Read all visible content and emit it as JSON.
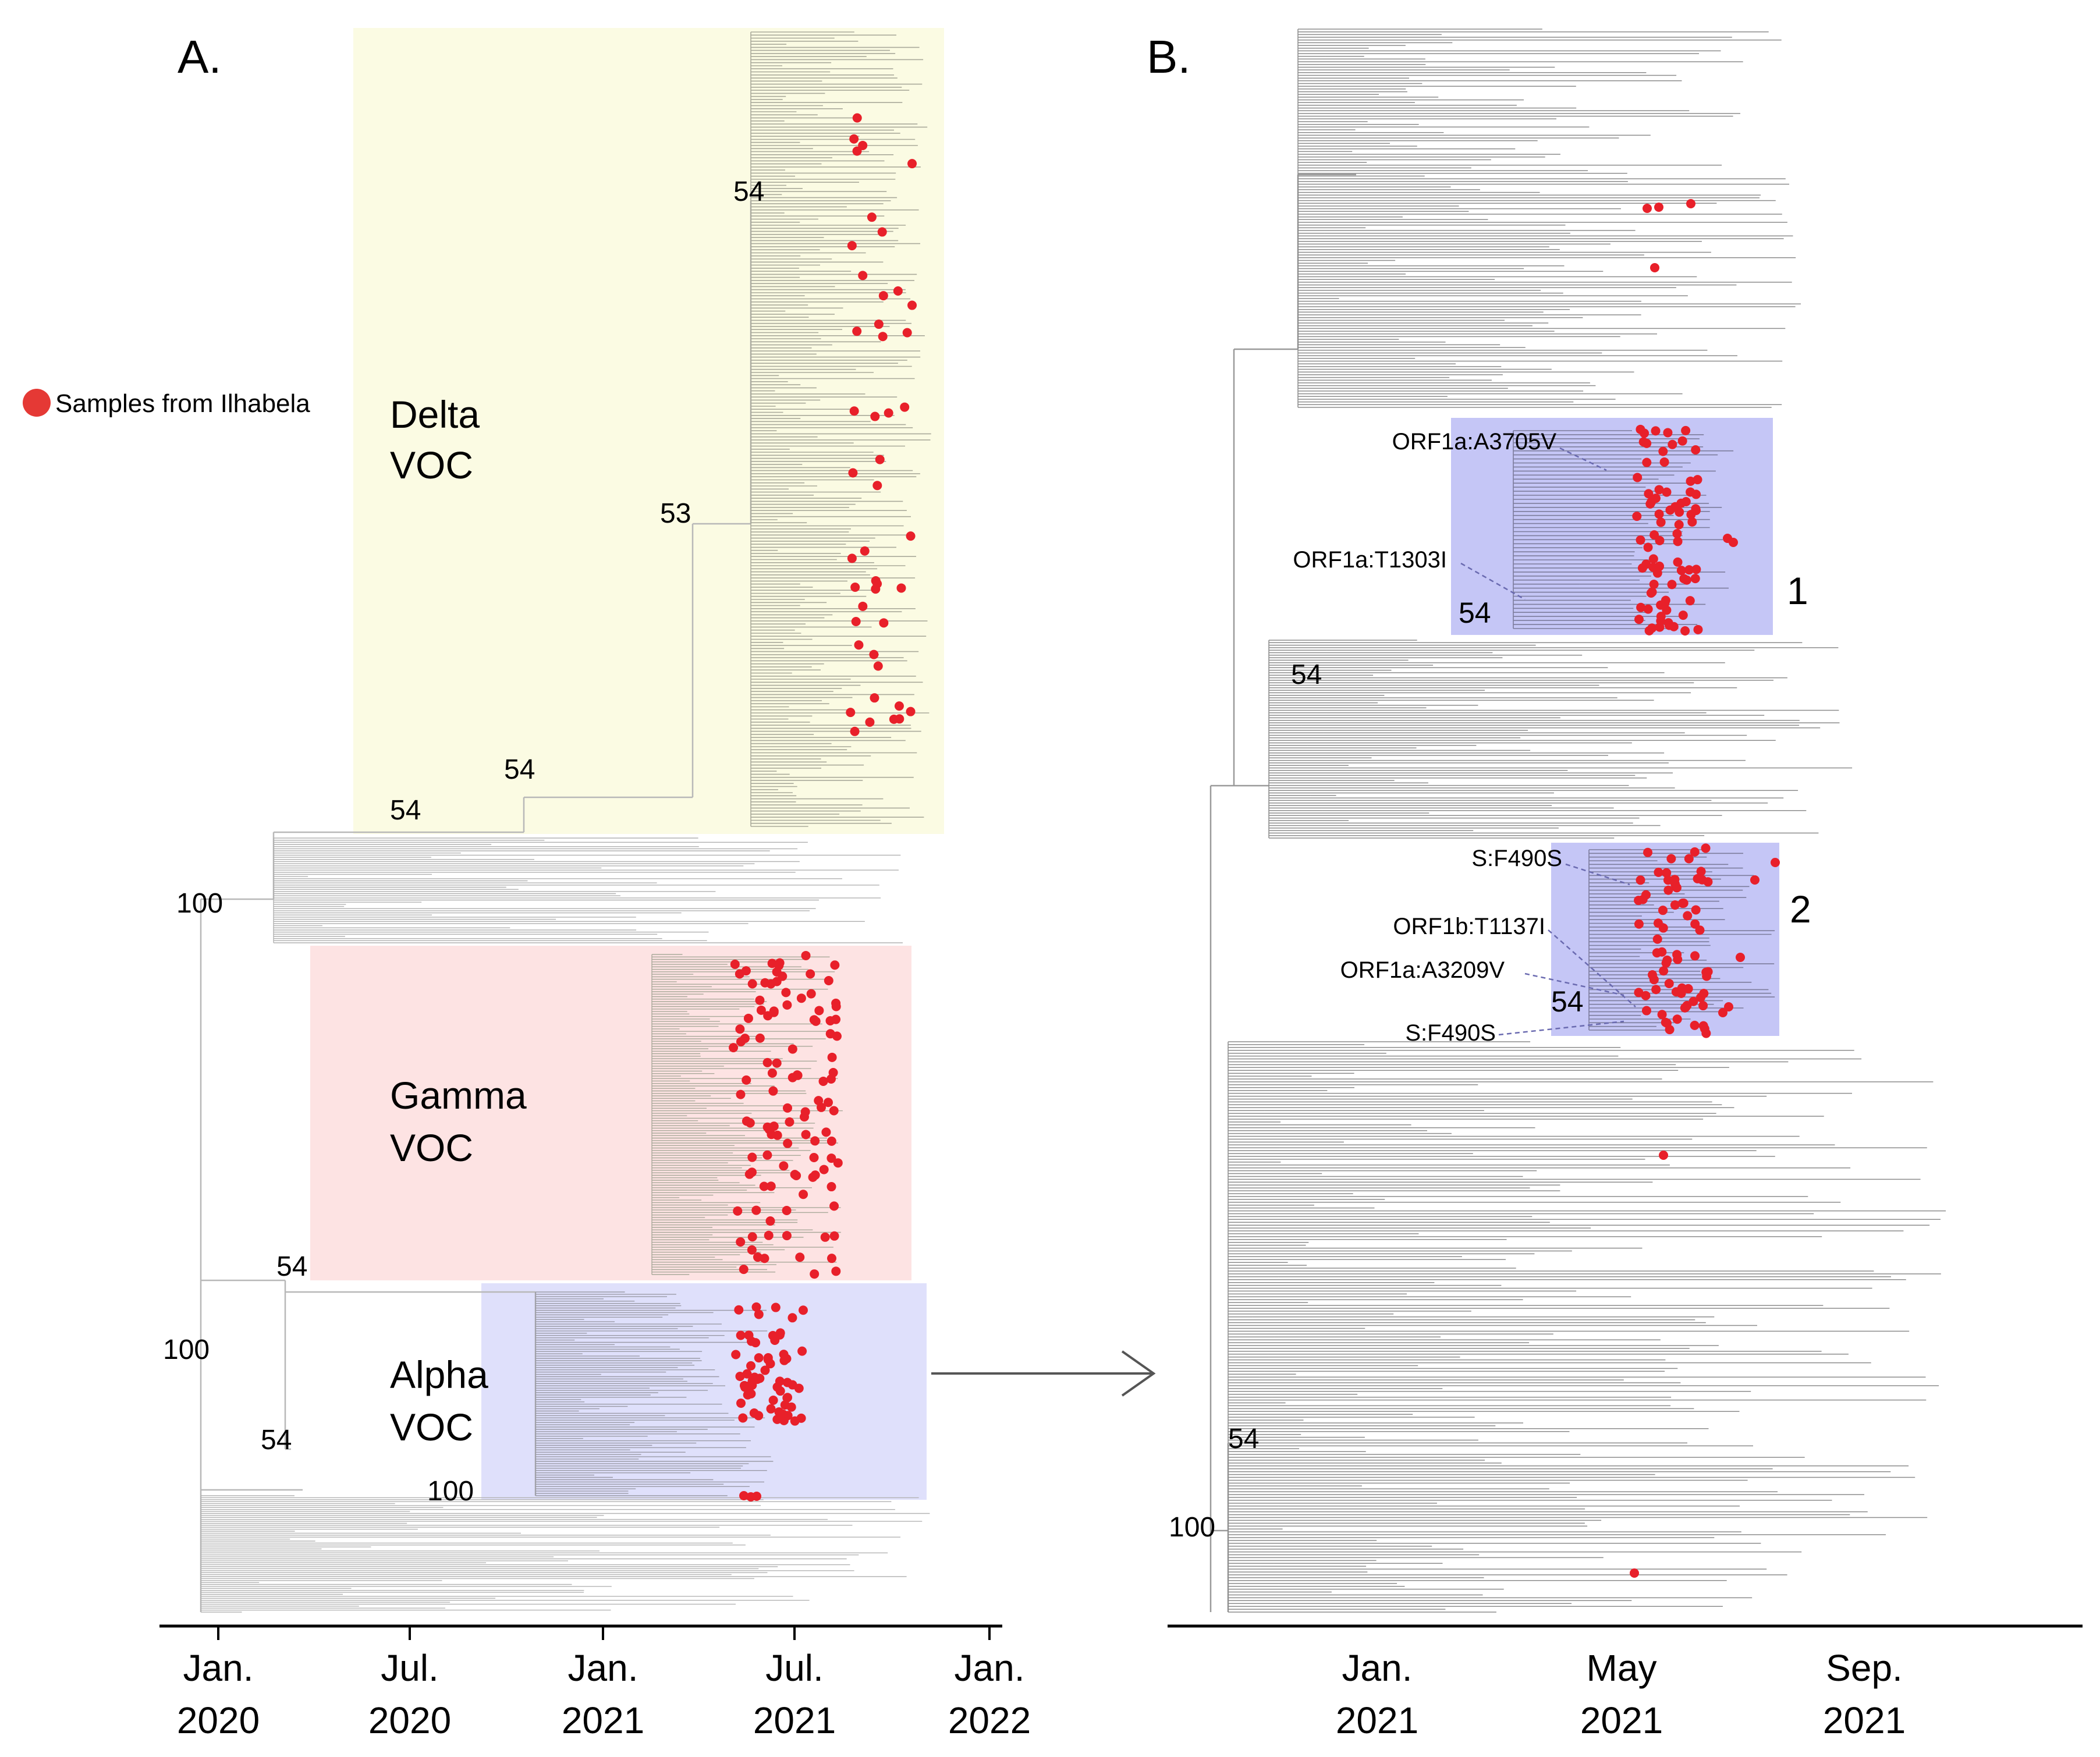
{
  "panel_a": {
    "label": "A.",
    "legend": {
      "label": "Samples from Ilhabela",
      "color": "#e53935"
    },
    "clades": [
      {
        "line1": "Delta",
        "line2": "VOC",
        "fill": "#fbfbe3"
      },
      {
        "line1": "Gamma",
        "line2": "VOC",
        "fill": "#fde3e3"
      },
      {
        "line1": "Alpha",
        "line2": "VOC",
        "fill": "#dfe0fb"
      }
    ],
    "support": [
      "54",
      "53",
      "54",
      "54",
      "100",
      "54",
      "100",
      "54",
      "100"
    ],
    "axis": [
      {
        "month": "Jan.",
        "year": "2020"
      },
      {
        "month": "Jul.",
        "year": "2020"
      },
      {
        "month": "Jan.",
        "year": "2021"
      },
      {
        "month": "Jul.",
        "year": "2021"
      },
      {
        "month": "Jan.",
        "year": "2022"
      }
    ]
  },
  "panel_b": {
    "label": "B.",
    "clusters": [
      "1",
      "2"
    ],
    "mutations": [
      "ORF1a:A3705V",
      "ORF1a:T1303I",
      "S:F490S",
      "ORF1b:T1137I",
      "ORF1a:A3209V",
      "S:F490S"
    ],
    "support": [
      "54",
      "54",
      "54",
      "54",
      "100"
    ],
    "axis": [
      {
        "month": "Jan.",
        "year": "2021"
      },
      {
        "month": "May",
        "year": "2021"
      },
      {
        "month": "Sep.",
        "year": "2021"
      }
    ]
  },
  "colors": {
    "sample": "#e8202a",
    "tree_a": "#a9a99a",
    "tree_b": "#8c8c8c",
    "cluster_box": "#c5c6f6"
  }
}
